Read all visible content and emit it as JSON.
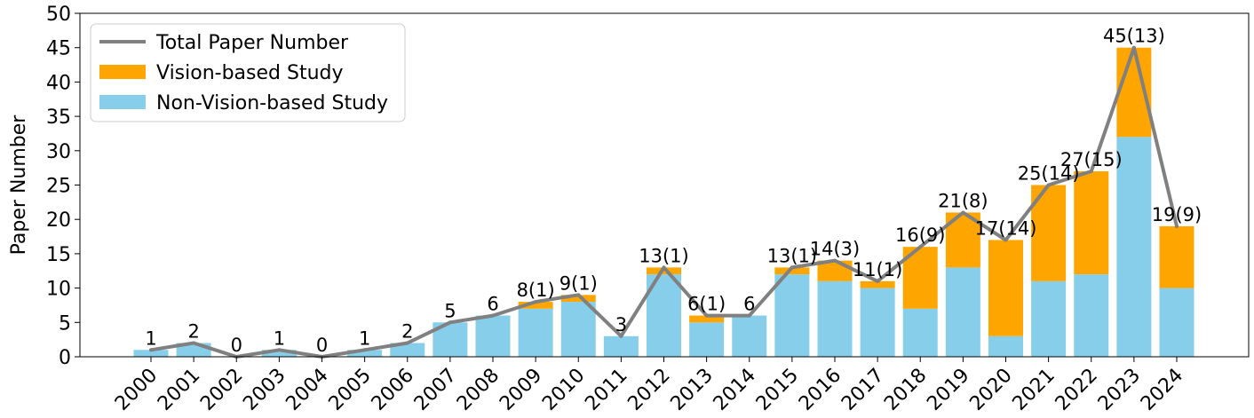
{
  "chart_data": {
    "type": "bar",
    "stacked": true,
    "categories": [
      "2000",
      "2001",
      "2002",
      "2003",
      "2004",
      "2005",
      "2006",
      "2007",
      "2008",
      "2009",
      "2010",
      "2011",
      "2012",
      "2013",
      "2014",
      "2015",
      "2016",
      "2017",
      "2018",
      "2019",
      "2020",
      "2021",
      "2022",
      "2023",
      "2024"
    ],
    "series": [
      {
        "name": "Non-Vision-based Study",
        "color": "#87CEEB",
        "values": [
          1,
          2,
          0,
          1,
          0,
          1,
          2,
          5,
          6,
          7,
          8,
          3,
          12,
          5,
          6,
          12,
          11,
          10,
          7,
          13,
          3,
          11,
          12,
          32,
          10
        ]
      },
      {
        "name": "Vision-based Study",
        "color": "#FFA500",
        "values": [
          0,
          0,
          0,
          0,
          0,
          0,
          0,
          0,
          0,
          1,
          1,
          0,
          1,
          1,
          0,
          1,
          3,
          1,
          9,
          8,
          14,
          14,
          15,
          13,
          9
        ]
      }
    ],
    "line": {
      "name": "Total Paper Number",
      "color": "#808080",
      "values": [
        1,
        2,
        0,
        1,
        0,
        1,
        2,
        5,
        6,
        8,
        9,
        3,
        13,
        6,
        6,
        13,
        14,
        11,
        16,
        21,
        17,
        25,
        27,
        45,
        19
      ]
    },
    "data_labels": [
      "1",
      "2",
      "0",
      "1",
      "0",
      "1",
      "2",
      "5",
      "6",
      "8(1)",
      "9(1)",
      "3",
      "13(1)",
      "6(1)",
      "6",
      "13(1)",
      "14(3)",
      "11(1)",
      "16(9)",
      "21(8)",
      "17(14)",
      "25(14)",
      "27(15)",
      "45(13)",
      "19(9)"
    ],
    "ylabel": "Paper Number",
    "xlabel": "",
    "title": "",
    "ylim": [
      0,
      50
    ],
    "yticks": [
      0,
      5,
      10,
      15,
      20,
      25,
      30,
      35,
      40,
      45,
      50
    ],
    "grid": false,
    "legend_position": "top-left",
    "legend_order": [
      "Total Paper Number",
      "Vision-based Study",
      "Non-Vision-based Study"
    ]
  }
}
